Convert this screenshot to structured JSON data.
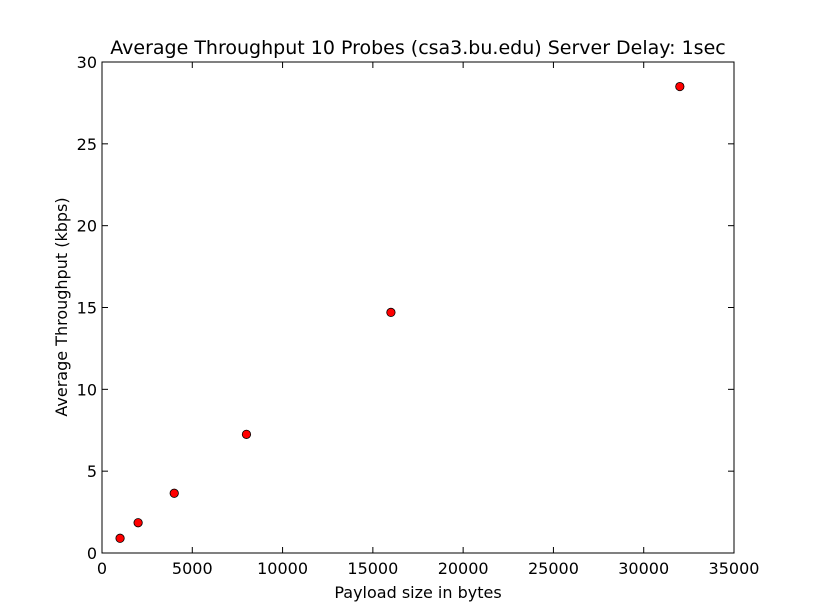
{
  "chart_data": {
    "type": "scatter",
    "title": "Average Throughput 10 Probes (csa3.bu.edu) Server Delay: 1sec",
    "xlabel": "Payload size in bytes",
    "ylabel": "Average Throughput (kbps)",
    "xlim": [
      0,
      35000
    ],
    "ylim": [
      0,
      30
    ],
    "xticks": [
      0,
      5000,
      10000,
      15000,
      20000,
      25000,
      30000,
      35000
    ],
    "yticks": [
      0,
      5,
      10,
      15,
      20,
      25,
      30
    ],
    "grid": false,
    "marker_color": "#ff0000",
    "series": [
      {
        "x": [
          1000,
          2000,
          4000,
          8000,
          16000,
          32000
        ],
        "y": [
          0.9,
          1.85,
          3.65,
          7.25,
          14.7,
          28.5
        ]
      }
    ]
  }
}
